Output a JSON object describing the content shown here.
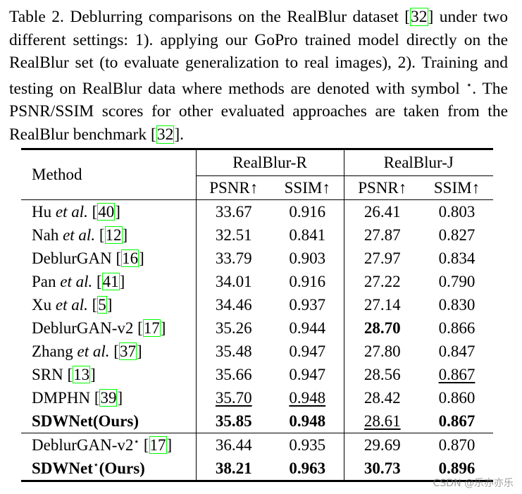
{
  "caption": [
    {
      "text": "Table 2. Deblurring comparisons on the RealBlur dataset "
    },
    {
      "text": "["
    },
    {
      "text": "32",
      "style": "cite"
    },
    {
      "text": "]"
    },
    {
      "text": " under two different settings: 1). applying our GoPro trained model directly on the RealBlur set (to evaluate generalization to real images), 2). Training and testing on RealBlur data where methods are denoted with symbol "
    },
    {
      "text": "⋆",
      "style": "sup"
    },
    {
      "text": ". The PSNR/SSIM scores for other evaluated approaches are taken from the RealBlur benchmark "
    },
    {
      "text": "["
    },
    {
      "text": "32",
      "style": "cite"
    },
    {
      "text": "]"
    },
    {
      "text": "."
    }
  ],
  "table": {
    "header": {
      "method": "Method",
      "groups": [
        "RealBlur-R",
        "RealBlur-J"
      ],
      "metrics": [
        "PSNR↑",
        "SSIM↑",
        "PSNR↑",
        "SSIM↑"
      ]
    },
    "sections": [
      [
        {
          "method": [
            {
              "text": "Hu "
            },
            {
              "text": "et al.",
              "style": "italic"
            },
            {
              "text": " ["
            },
            {
              "text": "40",
              "style": "cite"
            },
            {
              "text": "]"
            }
          ],
          "cells": [
            {
              "text": "33.67"
            },
            {
              "text": "0.916"
            },
            {
              "text": "26.41"
            },
            {
              "text": "0.803"
            }
          ]
        },
        {
          "method": [
            {
              "text": "Nah "
            },
            {
              "text": "et al.",
              "style": "italic"
            },
            {
              "text": " ["
            },
            {
              "text": "12",
              "style": "cite"
            },
            {
              "text": "]"
            }
          ],
          "cells": [
            {
              "text": "32.51"
            },
            {
              "text": "0.841"
            },
            {
              "text": "27.87"
            },
            {
              "text": "0.827"
            }
          ]
        },
        {
          "method": [
            {
              "text": "DeblurGAN ["
            },
            {
              "text": "16",
              "style": "cite"
            },
            {
              "text": "]"
            }
          ],
          "cells": [
            {
              "text": "33.79"
            },
            {
              "text": "0.903"
            },
            {
              "text": "27.97"
            },
            {
              "text": "0.834"
            }
          ]
        },
        {
          "method": [
            {
              "text": "Pan "
            },
            {
              "text": "et al.",
              "style": "italic"
            },
            {
              "text": " ["
            },
            {
              "text": "41",
              "style": "cite"
            },
            {
              "text": "]"
            }
          ],
          "cells": [
            {
              "text": "34.01"
            },
            {
              "text": "0.916"
            },
            {
              "text": "27.22"
            },
            {
              "text": "0.790"
            }
          ]
        },
        {
          "method": [
            {
              "text": "Xu "
            },
            {
              "text": "et al.",
              "style": "italic"
            },
            {
              "text": " ["
            },
            {
              "text": "5",
              "style": "cite"
            },
            {
              "text": "]"
            }
          ],
          "cells": [
            {
              "text": "34.46"
            },
            {
              "text": "0.937"
            },
            {
              "text": "27.14"
            },
            {
              "text": "0.830"
            }
          ]
        },
        {
          "method": [
            {
              "text": "DeblurGAN-v2 ["
            },
            {
              "text": "17",
              "style": "cite"
            },
            {
              "text": "]"
            }
          ],
          "cells": [
            {
              "text": "35.26"
            },
            {
              "text": "0.944"
            },
            {
              "text": "28.70",
              "style": "bold"
            },
            {
              "text": "0.866"
            }
          ]
        },
        {
          "method": [
            {
              "text": "Zhang "
            },
            {
              "text": "et al.",
              "style": "italic"
            },
            {
              "text": " ["
            },
            {
              "text": "37",
              "style": "cite"
            },
            {
              "text": "]"
            }
          ],
          "cells": [
            {
              "text": "35.48"
            },
            {
              "text": "0.947"
            },
            {
              "text": "27.80"
            },
            {
              "text": "0.847"
            }
          ]
        },
        {
          "method": [
            {
              "text": "SRN ["
            },
            {
              "text": "13",
              "style": "cite"
            },
            {
              "text": "]"
            }
          ],
          "cells": [
            {
              "text": "35.66"
            },
            {
              "text": "0.947"
            },
            {
              "text": "28.56"
            },
            {
              "text": "0.867",
              "style": "underline"
            }
          ]
        },
        {
          "method": [
            {
              "text": "DMPHN ["
            },
            {
              "text": "39",
              "style": "cite"
            },
            {
              "text": "]"
            }
          ],
          "cells": [
            {
              "text": "35.70",
              "style": "underline"
            },
            {
              "text": "0.948",
              "style": "underline"
            },
            {
              "text": "28.42"
            },
            {
              "text": "0.860"
            }
          ]
        },
        {
          "method": [
            {
              "text": "SDWNet(Ours)",
              "style": "bold"
            }
          ],
          "cells": [
            {
              "text": "35.85",
              "style": "bold"
            },
            {
              "text": "0.948",
              "style": "bold"
            },
            {
              "text": "28.61",
              "style": "underline"
            },
            {
              "text": "0.867",
              "style": "bold"
            }
          ]
        }
      ],
      [
        {
          "method": [
            {
              "text": "DeblurGAN-v2"
            },
            {
              "text": "⋆",
              "style": "sup"
            },
            {
              "text": " ["
            },
            {
              "text": "17",
              "style": "cite"
            },
            {
              "text": "]"
            }
          ],
          "cells": [
            {
              "text": "36.44"
            },
            {
              "text": "0.935"
            },
            {
              "text": "29.69"
            },
            {
              "text": "0.870"
            }
          ]
        },
        {
          "method": [
            {
              "text": "SDWNet",
              "style": "bold"
            },
            {
              "text": "⋆",
              "style": "sup"
            },
            {
              "text": "(Ours)",
              "style": "bold"
            }
          ],
          "cells": [
            {
              "text": "38.21",
              "style": "bold"
            },
            {
              "text": "0.963",
              "style": "bold"
            },
            {
              "text": "30.73",
              "style": "bold"
            },
            {
              "text": "0.896",
              "style": "bold"
            }
          ]
        }
      ]
    ]
  },
  "watermark": "CSDN @乐亦亦乐"
}
